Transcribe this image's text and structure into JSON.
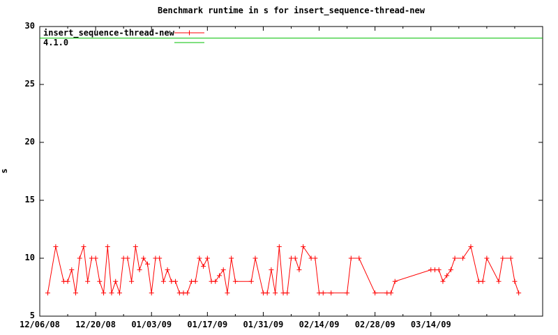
{
  "window": {
    "background": "#ffffff",
    "foreground": "#000000"
  },
  "chart_data": {
    "type": "line",
    "title": "Benchmark runtime in s for insert_sequence-thread-new",
    "xlabel": "",
    "ylabel": "s",
    "ylim": [
      5,
      30
    ],
    "yticks": [
      5,
      10,
      15,
      20,
      25,
      30
    ],
    "x_range": [
      "12/06/08",
      "04/11/09"
    ],
    "xtick_labels": [
      "12/06/08",
      "12/20/08",
      "01/03/09",
      "01/17/09",
      "01/31/09",
      "02/14/09",
      "02/28/09",
      "03/14/09"
    ],
    "xtick_minor_interval_days": 7,
    "grid": false,
    "legend_position": "top-left",
    "legend": {
      "entries": [
        {
          "label": "insert_sequence-thread-new",
          "color": "#ff0000",
          "sample": "line-plus"
        },
        {
          "label": "4.1.0",
          "color": "#00c000",
          "sample": "line"
        }
      ]
    },
    "baseline": {
      "name": "4.1.0",
      "color": "#00c000",
      "value": 29
    },
    "series": [
      {
        "name": "insert_sequence-thread-new",
        "color": "#ff0000",
        "marker": "plus",
        "points": [
          [
            "12/08/08",
            7
          ],
          [
            "12/10/08",
            11
          ],
          [
            "12/12/08",
            8
          ],
          [
            "12/13/08",
            8
          ],
          [
            "12/14/08",
            9
          ],
          [
            "12/15/08",
            7
          ],
          [
            "12/16/08",
            10
          ],
          [
            "12/17/08",
            11
          ],
          [
            "12/18/08",
            8
          ],
          [
            "12/19/08",
            10
          ],
          [
            "12/20/08",
            10
          ],
          [
            "12/21/08",
            8
          ],
          [
            "12/22/08",
            7
          ],
          [
            "12/23/08",
            11
          ],
          [
            "12/24/08",
            7
          ],
          [
            "12/25/08",
            8
          ],
          [
            "12/26/08",
            7
          ],
          [
            "12/27/08",
            10
          ],
          [
            "12/28/08",
            10
          ],
          [
            "12/29/08",
            8
          ],
          [
            "12/30/08",
            11
          ],
          [
            "12/31/08",
            9
          ],
          [
            "01/01/09",
            10
          ],
          [
            "01/02/09",
            9.5
          ],
          [
            "01/03/09",
            7
          ],
          [
            "01/04/09",
            10
          ],
          [
            "01/05/09",
            10
          ],
          [
            "01/06/09",
            8
          ],
          [
            "01/07/09",
            9
          ],
          [
            "01/08/09",
            8
          ],
          [
            "01/09/09",
            8
          ],
          [
            "01/10/09",
            7
          ],
          [
            "01/11/09",
            7
          ],
          [
            "01/12/09",
            7
          ],
          [
            "01/13/09",
            8
          ],
          [
            "01/14/09",
            8
          ],
          [
            "01/15/09",
            10
          ],
          [
            "01/16/09",
            9.3
          ],
          [
            "01/17/09",
            10
          ],
          [
            "01/18/09",
            8
          ],
          [
            "01/19/09",
            8
          ],
          [
            "01/20/09",
            8.5
          ],
          [
            "01/21/09",
            9
          ],
          [
            "01/22/09",
            7
          ],
          [
            "01/23/09",
            10
          ],
          [
            "01/24/09",
            8
          ],
          [
            "01/28/09",
            8
          ],
          [
            "01/29/09",
            10
          ],
          [
            "01/31/09",
            7
          ],
          [
            "02/01/09",
            7
          ],
          [
            "02/02/09",
            9
          ],
          [
            "02/03/09",
            7
          ],
          [
            "02/04/09",
            11
          ],
          [
            "02/05/09",
            7
          ],
          [
            "02/06/09",
            7
          ],
          [
            "02/07/09",
            10
          ],
          [
            "02/08/09",
            10
          ],
          [
            "02/09/09",
            9
          ],
          [
            "02/10/09",
            11
          ],
          [
            "02/12/09",
            10
          ],
          [
            "02/13/09",
            10
          ],
          [
            "02/14/09",
            7
          ],
          [
            "02/15/09",
            7
          ],
          [
            "02/17/09",
            7
          ],
          [
            "02/21/09",
            7
          ],
          [
            "02/22/09",
            10
          ],
          [
            "02/24/09",
            10
          ],
          [
            "02/28/09",
            7
          ],
          [
            "03/03/09",
            7
          ],
          [
            "03/04/09",
            7
          ],
          [
            "03/05/09",
            8
          ],
          [
            "03/14/09",
            9
          ],
          [
            "03/15/09",
            9
          ],
          [
            "03/16/09",
            9
          ],
          [
            "03/17/09",
            8
          ],
          [
            "03/18/09",
            8.5
          ],
          [
            "03/19/09",
            9
          ],
          [
            "03/20/09",
            10
          ],
          [
            "03/22/09",
            10
          ],
          [
            "03/24/09",
            11
          ],
          [
            "03/26/09",
            8
          ],
          [
            "03/27/09",
            8
          ],
          [
            "03/28/09",
            10
          ],
          [
            "03/31/09",
            8
          ],
          [
            "04/01/09",
            10
          ],
          [
            "04/03/09",
            10
          ],
          [
            "04/04/09",
            8
          ],
          [
            "04/05/09",
            7
          ]
        ]
      }
    ]
  }
}
